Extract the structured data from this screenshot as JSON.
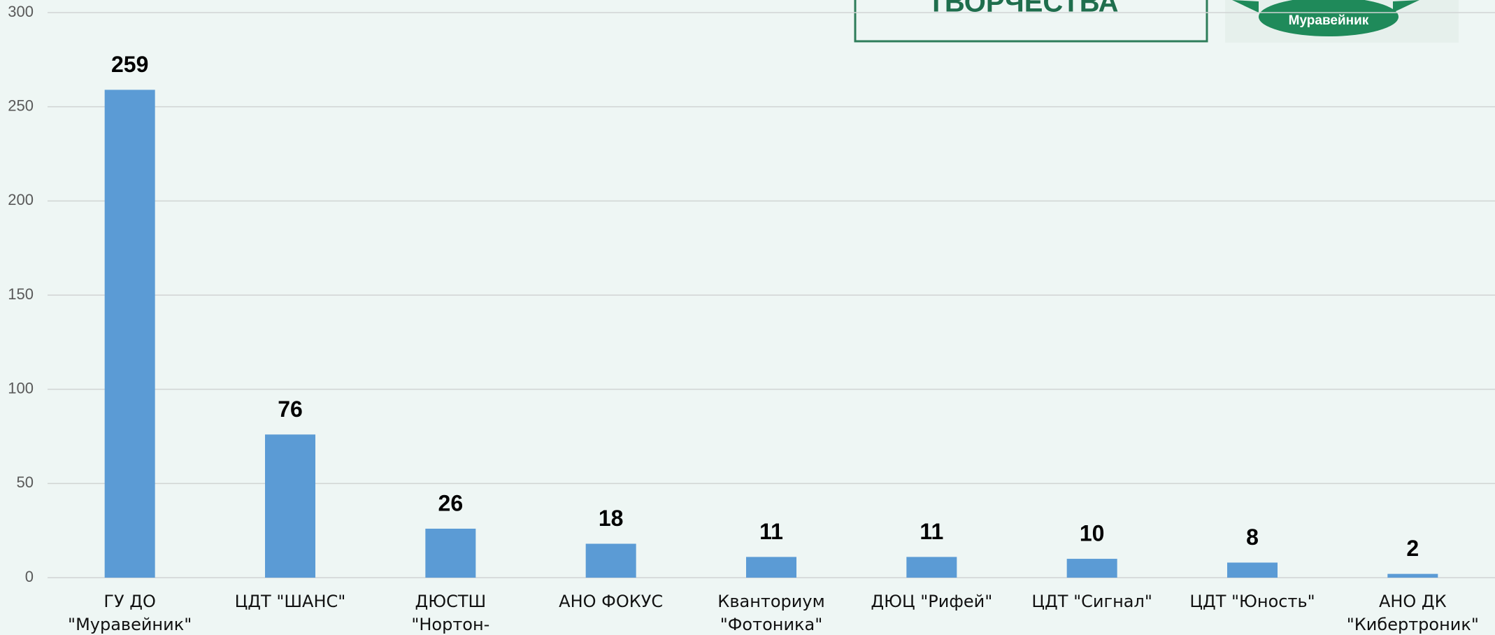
{
  "chart_data": {
    "type": "bar",
    "categories": [
      "ГУ ДО \"Муравейник\"",
      "ЦДТ \"ШАНС\"",
      "ДЮСТШ  \"Нортон-Юниор\"",
      "АНО ФОКУС",
      "Кванториум \"Фотоника\"",
      "ДЮЦ \"Рифей\"",
      "ЦДТ \"Сигнал\"",
      "ЦДТ \"Юность\"",
      "АНО ДК \"Кибертроник\""
    ],
    "values": [
      259,
      76,
      26,
      18,
      11,
      11,
      10,
      8,
      2
    ],
    "color": "#5b9bd5",
    "ylim": [
      0,
      300
    ],
    "yticks": [
      0,
      50,
      100,
      150,
      200,
      250,
      300
    ],
    "grid": true,
    "annotations": [
      "ТВОРЧЕСТВА",
      "Муравейник"
    ]
  }
}
